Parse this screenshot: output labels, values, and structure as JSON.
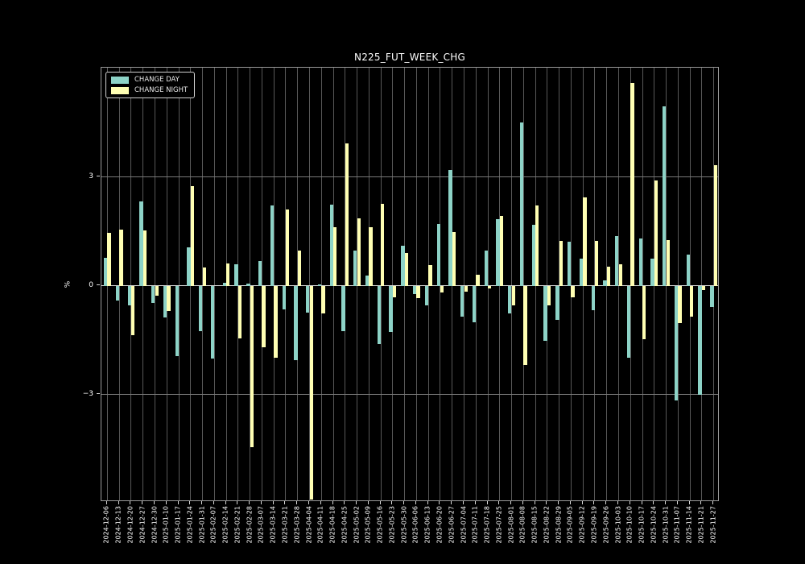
{
  "title": "N225_FUT_WEEK_CHG",
  "legend": {
    "day_label": "CHANGE DAY",
    "night_label": "CHANGE NIGHT"
  },
  "y_axis": {
    "label": "%",
    "ticks": [
      {
        "value": 3,
        "label": "3"
      },
      {
        "value": 0,
        "label": "0"
      },
      {
        "value": -3,
        "label": "−3"
      }
    ]
  },
  "colors": {
    "day": "#8dd3c7",
    "night": "#ffffb3",
    "background": "#000000",
    "text": "#ffffff",
    "grid_vertical": "#585858",
    "grid_horizontal": "#7a7a7a",
    "zero_line": "#d9d9d9",
    "frame": "#9a9a9a"
  },
  "chart_data": {
    "type": "bar",
    "title": "N225_FUT_WEEK_CHG",
    "xlabel": "",
    "ylabel": "%",
    "ylim": [
      -5.96,
      6.02
    ],
    "yticks": [
      3,
      0,
      -3
    ],
    "grid": true,
    "legend_position": "upper left",
    "categories": [
      "2024-12-06",
      "2024-12-13",
      "2024-12-20",
      "2024-12-27",
      "2024-12-30",
      "2025-01-10",
      "2025-01-17",
      "2025-01-24",
      "2025-01-31",
      "2025-02-07",
      "2025-02-14",
      "2025-02-21",
      "2025-02-28",
      "2025-03-07",
      "2025-03-14",
      "2025-03-21",
      "2025-03-28",
      "2025-04-04",
      "2025-04-11",
      "2025-04-18",
      "2025-04-25",
      "2025-05-02",
      "2025-05-09",
      "2025-05-16",
      "2025-05-23",
      "2025-05-30",
      "2025-06-06",
      "2025-06-13",
      "2025-06-20",
      "2025-06-27",
      "2025-07-04",
      "2025-07-11",
      "2025-07-18",
      "2025-07-25",
      "2025-08-01",
      "2025-08-08",
      "2025-08-15",
      "2025-08-22",
      "2025-08-29",
      "2025-09-05",
      "2025-09-12",
      "2025-09-19",
      "2025-09-26",
      "2025-10-03",
      "2025-10-10",
      "2025-10-17",
      "2025-10-24",
      "2025-10-31",
      "2025-11-07",
      "2025-11-14",
      "2025-11-21",
      "2025-11-27"
    ],
    "series": [
      {
        "name": "CHANGE DAY",
        "values": [
          0.78,
          -0.41,
          -0.55,
          2.33,
          -0.47,
          -0.88,
          -1.95,
          1.07,
          -1.24,
          -2.0,
          0.09,
          0.6,
          0.07,
          0.68,
          2.22,
          -0.64,
          -2.05,
          -0.73,
          0.05,
          2.25,
          -1.25,
          0.97,
          0.28,
          -1.6,
          -1.27,
          1.12,
          -0.22,
          -0.53,
          1.72,
          3.2,
          -0.85,
          -1.0,
          0.97,
          1.85,
          -0.77,
          4.52,
          1.68,
          -1.52,
          -0.94,
          1.22,
          0.75,
          -0.68,
          0.16,
          1.37,
          -1.99,
          1.32,
          0.75,
          4.95,
          -3.17,
          0.87,
          -3.0,
          -0.59
        ]
      },
      {
        "name": "CHANGE NIGHT",
        "values": [
          1.47,
          1.56,
          -1.36,
          1.53,
          -0.28,
          -0.7,
          0.0,
          2.75,
          0.5,
          0.0,
          0.63,
          -1.46,
          -4.45,
          -1.7,
          -1.99,
          2.12,
          0.97,
          -5.9,
          -0.76,
          1.61,
          3.93,
          1.87,
          1.63,
          2.26,
          -0.31,
          0.92,
          -0.33,
          0.57,
          -0.19,
          1.48,
          -0.16,
          0.32,
          -0.08,
          1.94,
          -0.55,
          -2.18,
          2.22,
          -0.55,
          1.24,
          -0.31,
          2.45,
          1.24,
          0.53,
          0.6,
          5.59,
          -1.47,
          2.92,
          1.26,
          -1.03,
          -0.86,
          -0.12,
          3.34
        ]
      }
    ]
  }
}
